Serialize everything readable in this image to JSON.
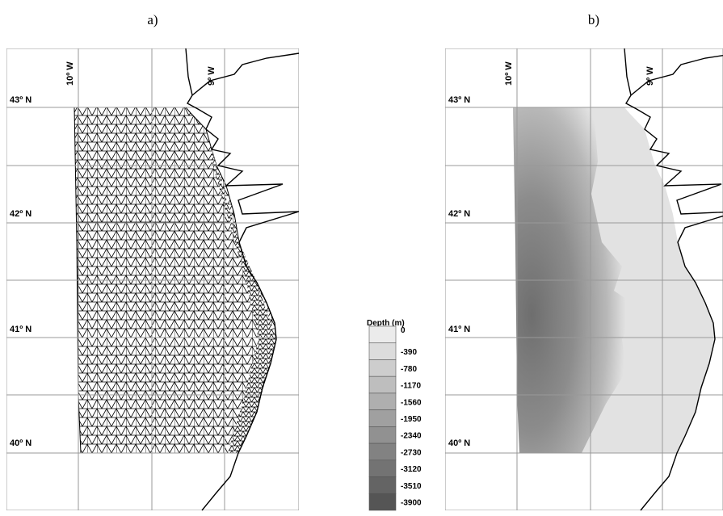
{
  "panels": [
    {
      "label": "a)",
      "latitudes": [
        "43º N",
        "42º N",
        "41º N",
        "40º N"
      ],
      "longitudes": [
        "10º W",
        "9º W"
      ]
    },
    {
      "label": "b)",
      "latitudes": [
        "43º N",
        "42º N",
        "41º N",
        "40º N"
      ],
      "longitudes": [
        "10º W",
        "9º W"
      ]
    }
  ],
  "legend": {
    "title": "Depth (m)",
    "levels": [
      0,
      -390,
      -780,
      -1170,
      -1560,
      -1950,
      -2340,
      -2730,
      -3120,
      -3510,
      -3900
    ]
  }
}
